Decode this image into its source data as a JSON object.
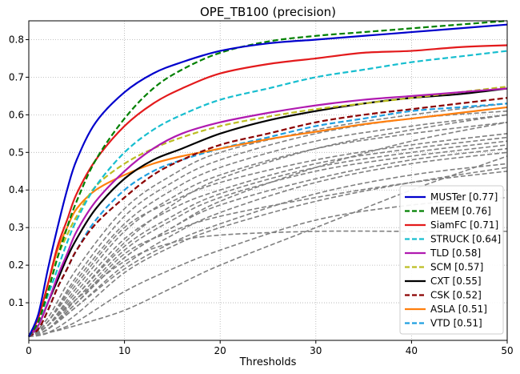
{
  "chart_data": {
    "type": "line",
    "title": "OPE_TB100 (precision)",
    "xlabel": "Thresholds",
    "ylabel": "",
    "xlim": [
      0,
      50
    ],
    "ylim": [
      0,
      0.85
    ],
    "xticks": [
      0,
      10,
      20,
      30,
      40,
      50
    ],
    "yticks": [
      0.1,
      0.2,
      0.3,
      0.4,
      0.5,
      0.6,
      0.7,
      0.8
    ],
    "grid": true,
    "legend_position": "lower-right",
    "series": [
      {
        "name": "MUSTer [0.77]",
        "color": "#0000cc",
        "style": "solid",
        "x": [
          0,
          1,
          2,
          3,
          4,
          5,
          7,
          10,
          13,
          16,
          20,
          25,
          30,
          35,
          40,
          45,
          50
        ],
        "y": [
          0.01,
          0.07,
          0.19,
          0.3,
          0.4,
          0.48,
          0.58,
          0.66,
          0.71,
          0.74,
          0.77,
          0.79,
          0.8,
          0.81,
          0.82,
          0.83,
          0.84
        ]
      },
      {
        "name": "MEEM [0.76]",
        "color": "#008000",
        "style": "dashed",
        "x": [
          0,
          1,
          2,
          3,
          4,
          5,
          7,
          10,
          13,
          16,
          20,
          25,
          30,
          35,
          40,
          45,
          50
        ],
        "y": [
          0.01,
          0.05,
          0.13,
          0.22,
          0.3,
          0.37,
          0.48,
          0.59,
          0.67,
          0.72,
          0.765,
          0.795,
          0.81,
          0.82,
          0.83,
          0.84,
          0.85
        ]
      },
      {
        "name": "SiamFC [0.71]",
        "color": "#e31a1c",
        "style": "solid",
        "x": [
          0,
          1,
          2,
          3,
          4,
          5,
          7,
          10,
          13,
          16,
          20,
          25,
          30,
          35,
          40,
          45,
          50
        ],
        "y": [
          0.01,
          0.06,
          0.15,
          0.25,
          0.32,
          0.39,
          0.48,
          0.57,
          0.63,
          0.67,
          0.71,
          0.735,
          0.75,
          0.765,
          0.77,
          0.78,
          0.785
        ]
      },
      {
        "name": "STRUCK [0.64]",
        "color": "#17becf",
        "style": "dashed",
        "x": [
          0,
          1,
          2,
          3,
          4,
          5,
          7,
          10,
          13,
          16,
          20,
          25,
          30,
          35,
          40,
          45,
          50
        ],
        "y": [
          0.01,
          0.05,
          0.12,
          0.19,
          0.26,
          0.32,
          0.41,
          0.5,
          0.56,
          0.6,
          0.64,
          0.67,
          0.7,
          0.72,
          0.74,
          0.755,
          0.77
        ]
      },
      {
        "name": "TLD [0.58]",
        "color": "#b01ab0",
        "style": "solid",
        "x": [
          0,
          1,
          2,
          3,
          4,
          5,
          7,
          10,
          13,
          16,
          20,
          25,
          30,
          35,
          40,
          45,
          50
        ],
        "y": [
          0.01,
          0.04,
          0.1,
          0.17,
          0.23,
          0.29,
          0.37,
          0.45,
          0.51,
          0.55,
          0.58,
          0.605,
          0.625,
          0.64,
          0.65,
          0.66,
          0.67
        ]
      },
      {
        "name": "SCM [0.57]",
        "color": "#bcbd22",
        "style": "dashed",
        "x": [
          0,
          1,
          2,
          3,
          4,
          5,
          7,
          10,
          13,
          16,
          20,
          25,
          30,
          35,
          40,
          45,
          50
        ],
        "y": [
          0.01,
          0.05,
          0.13,
          0.22,
          0.28,
          0.33,
          0.41,
          0.47,
          0.51,
          0.54,
          0.57,
          0.595,
          0.615,
          0.63,
          0.645,
          0.66,
          0.675
        ]
      },
      {
        "name": "CXT [0.55]",
        "color": "#000000",
        "style": "solid",
        "x": [
          0,
          1,
          2,
          3,
          4,
          5,
          7,
          10,
          13,
          16,
          20,
          25,
          30,
          35,
          40,
          45,
          50
        ],
        "y": [
          0.01,
          0.04,
          0.1,
          0.16,
          0.22,
          0.27,
          0.35,
          0.43,
          0.48,
          0.51,
          0.55,
          0.585,
          0.61,
          0.63,
          0.645,
          0.655,
          0.67
        ]
      },
      {
        "name": "CSK [0.52]",
        "color": "#8b0000",
        "style": "dashed",
        "x": [
          0,
          1,
          2,
          3,
          4,
          5,
          7,
          10,
          13,
          16,
          20,
          25,
          30,
          35,
          40,
          45,
          50
        ],
        "y": [
          0.01,
          0.03,
          0.08,
          0.14,
          0.19,
          0.24,
          0.31,
          0.38,
          0.44,
          0.48,
          0.52,
          0.55,
          0.58,
          0.6,
          0.615,
          0.63,
          0.645
        ]
      },
      {
        "name": "ASLA [0.51]",
        "color": "#ff7f0e",
        "style": "solid",
        "x": [
          0,
          1,
          2,
          3,
          4,
          5,
          7,
          10,
          13,
          16,
          20,
          25,
          30,
          35,
          40,
          45,
          50
        ],
        "y": [
          0.01,
          0.06,
          0.15,
          0.24,
          0.3,
          0.35,
          0.4,
          0.44,
          0.47,
          0.49,
          0.51,
          0.535,
          0.555,
          0.575,
          0.59,
          0.605,
          0.62
        ]
      },
      {
        "name": "VTD [0.51]",
        "color": "#1f9fe0",
        "style": "dashed",
        "x": [
          0,
          1,
          2,
          3,
          4,
          5,
          7,
          10,
          13,
          16,
          20,
          25,
          30,
          35,
          40,
          45,
          50
        ],
        "y": [
          0.01,
          0.03,
          0.08,
          0.14,
          0.19,
          0.24,
          0.32,
          0.4,
          0.45,
          0.48,
          0.51,
          0.54,
          0.57,
          0.59,
          0.61,
          0.62,
          0.63
        ]
      }
    ],
    "background_series": [
      {
        "x": [
          0,
          2,
          5,
          10,
          15,
          20,
          30,
          40,
          50
        ],
        "y": [
          0.01,
          0.06,
          0.19,
          0.35,
          0.44,
          0.5,
          0.56,
          0.6,
          0.63
        ]
      },
      {
        "x": [
          0,
          2,
          5,
          10,
          15,
          20,
          30,
          40,
          50
        ],
        "y": [
          0.01,
          0.05,
          0.17,
          0.33,
          0.42,
          0.48,
          0.55,
          0.59,
          0.61
        ]
      },
      {
        "x": [
          0,
          2,
          5,
          10,
          15,
          20,
          30,
          40,
          50
        ],
        "y": [
          0.01,
          0.05,
          0.16,
          0.31,
          0.4,
          0.46,
          0.53,
          0.57,
          0.6
        ]
      },
      {
        "x": [
          0,
          2,
          5,
          10,
          15,
          20,
          30,
          40,
          50
        ],
        "y": [
          0.01,
          0.04,
          0.14,
          0.29,
          0.38,
          0.44,
          0.51,
          0.55,
          0.58
        ]
      },
      {
        "x": [
          0,
          2,
          5,
          10,
          15,
          20,
          30,
          40,
          50
        ],
        "y": [
          0.01,
          0.05,
          0.15,
          0.3,
          0.37,
          0.42,
          0.48,
          0.52,
          0.55
        ]
      },
      {
        "x": [
          0,
          2,
          5,
          10,
          15,
          20,
          30,
          40,
          50
        ],
        "y": [
          0.01,
          0.04,
          0.13,
          0.27,
          0.35,
          0.4,
          0.47,
          0.51,
          0.54
        ]
      },
      {
        "x": [
          0,
          2,
          5,
          10,
          15,
          20,
          30,
          40,
          50
        ],
        "y": [
          0.01,
          0.04,
          0.12,
          0.25,
          0.33,
          0.39,
          0.46,
          0.5,
          0.53
        ]
      },
      {
        "x": [
          0,
          2,
          5,
          10,
          15,
          20,
          30,
          40,
          50
        ],
        "y": [
          0.01,
          0.03,
          0.11,
          0.24,
          0.32,
          0.38,
          0.45,
          0.49,
          0.52
        ]
      },
      {
        "x": [
          0,
          2,
          5,
          10,
          15,
          20,
          30,
          40,
          50
        ],
        "y": [
          0.01,
          0.03,
          0.1,
          0.22,
          0.3,
          0.36,
          0.43,
          0.48,
          0.51
        ]
      },
      {
        "x": [
          0,
          2,
          5,
          10,
          15,
          20,
          30,
          40,
          50
        ],
        "y": [
          0.01,
          0.03,
          0.09,
          0.2,
          0.28,
          0.34,
          0.42,
          0.47,
          0.5
        ]
      },
      {
        "x": [
          0,
          2,
          5,
          10,
          15,
          20,
          30,
          40,
          50
        ],
        "y": [
          0.01,
          0.03,
          0.1,
          0.23,
          0.29,
          0.33,
          0.38,
          0.42,
          0.45
        ]
      },
      {
        "x": [
          0,
          2,
          5,
          10,
          15,
          20,
          30,
          40,
          50
        ],
        "y": [
          0.01,
          0.02,
          0.07,
          0.18,
          0.25,
          0.3,
          0.37,
          0.42,
          0.46
        ]
      },
      {
        "x": [
          0,
          2,
          5,
          10,
          15,
          20,
          30,
          40,
          50
        ],
        "y": [
          0.01,
          0.02,
          0.05,
          0.13,
          0.19,
          0.24,
          0.32,
          0.36,
          0.38
        ]
      },
      {
        "x": [
          0,
          2,
          5,
          10,
          15,
          20,
          30,
          40,
          50
        ],
        "y": [
          0.01,
          0.02,
          0.04,
          0.08,
          0.14,
          0.2,
          0.3,
          0.4,
          0.49
        ]
      },
      {
        "x": [
          0,
          2,
          5,
          10,
          15,
          20,
          30,
          40,
          50
        ],
        "y": [
          0.01,
          0.04,
          0.11,
          0.21,
          0.26,
          0.28,
          0.29,
          0.29,
          0.29
        ]
      },
      {
        "x": [
          0,
          2,
          5,
          10,
          15,
          20,
          30,
          40,
          50
        ],
        "y": [
          0.01,
          0.03,
          0.1,
          0.22,
          0.3,
          0.37,
          0.46,
          0.53,
          0.58
        ]
      },
      {
        "x": [
          0,
          2,
          5,
          10,
          15,
          20,
          30,
          40,
          50
        ],
        "y": [
          0.01,
          0.03,
          0.09,
          0.19,
          0.26,
          0.31,
          0.39,
          0.44,
          0.47
        ]
      },
      {
        "x": [
          0,
          2,
          5,
          10,
          15,
          20,
          30,
          40,
          50
        ],
        "y": [
          0.01,
          0.04,
          0.12,
          0.26,
          0.36,
          0.43,
          0.51,
          0.56,
          0.6
        ]
      }
    ]
  }
}
